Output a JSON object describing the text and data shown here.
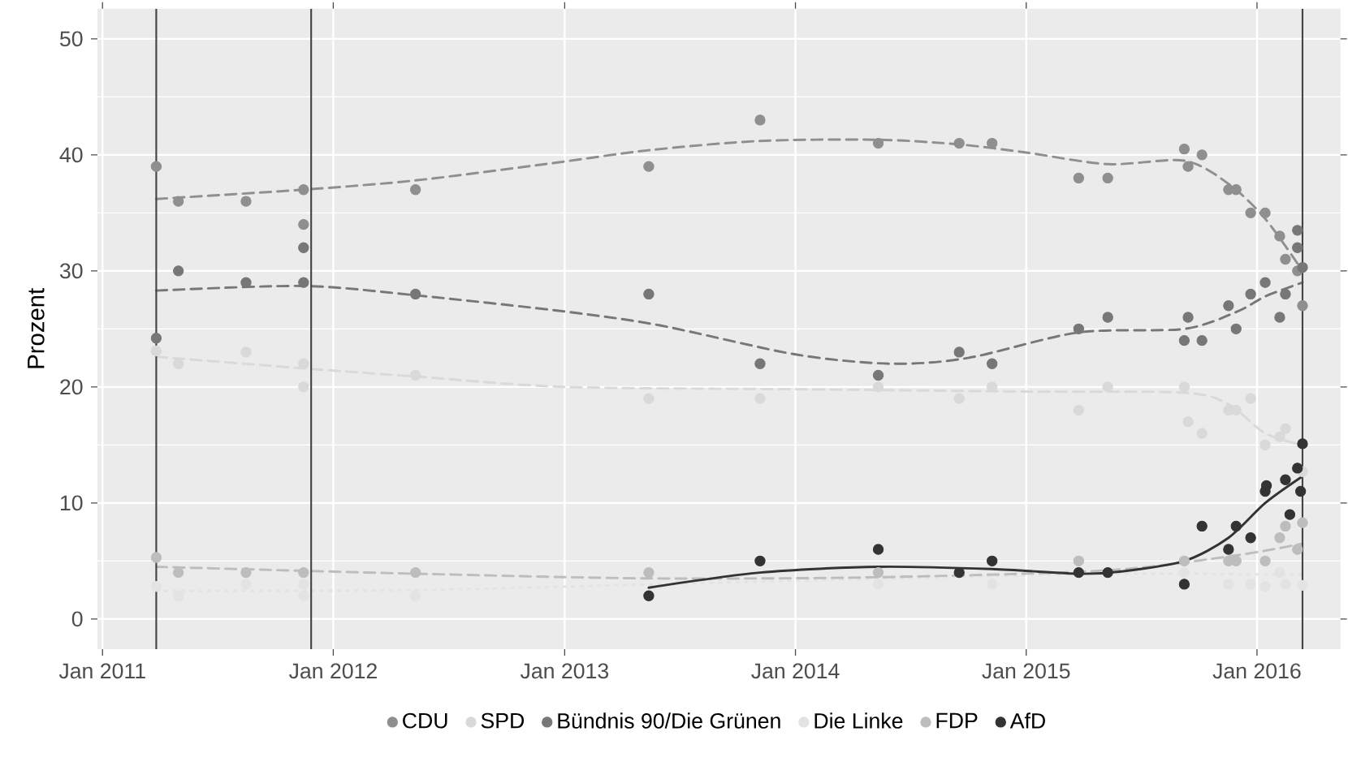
{
  "chart_data": {
    "type": "scatter",
    "ylabel": "Prozent",
    "xlim": [
      "2010-12-24",
      "2016-05-12"
    ],
    "ylim": [
      -2.6,
      52.6
    ],
    "xticks": [
      {
        "value": "2011-01-01",
        "label": "Jan 2011"
      },
      {
        "value": "2012-01-01",
        "label": "Jan 2012"
      },
      {
        "value": "2013-01-01",
        "label": "Jan 2013"
      },
      {
        "value": "2014-01-01",
        "label": "Jan 2014"
      },
      {
        "value": "2015-01-01",
        "label": "Jan 2015"
      },
      {
        "value": "2016-01-01",
        "label": "Jan 2016"
      }
    ],
    "yticks": [
      0,
      10,
      20,
      30,
      40,
      50
    ],
    "grid": true,
    "legend": "bottom",
    "ref_lines": [
      {
        "axis": "x",
        "value": "2011-03-27",
        "color": "#444444"
      },
      {
        "axis": "x",
        "value": "2011-11-27",
        "color": "#444444"
      },
      {
        "axis": "x",
        "value": "2016-03-13",
        "color": "#444444"
      }
    ],
    "series": [
      {
        "name": "CDU",
        "marker": "circle",
        "color": "#8f8f8f",
        "x": [
          "2011-03-27",
          "2011-05-01",
          "2011-08-16",
          "2011-11-15",
          "2011-11-15",
          "2012-05-10",
          "2013-05-14",
          "2013-11-06",
          "2014-05-12",
          "2014-09-17",
          "2014-11-08",
          "2015-03-25",
          "2015-05-10",
          "2015-09-08",
          "2015-09-14",
          "2015-10-06",
          "2015-11-17",
          "2015-11-29",
          "2015-12-22",
          "2016-01-14",
          "2016-02-06",
          "2016-02-15",
          "2016-03-05",
          "2016-03-13"
        ],
        "values": [
          39,
          36,
          36,
          37,
          34,
          37,
          39,
          43,
          41,
          41,
          41,
          38,
          38,
          40.5,
          39,
          40,
          37,
          37,
          35,
          35,
          33,
          31,
          30,
          27
        ]
      },
      {
        "name": "SPD",
        "marker": "circle",
        "color": "#d9d9d9",
        "x": [
          "2011-03-27",
          "2011-05-01",
          "2011-08-16",
          "2011-11-15",
          "2011-11-15",
          "2012-05-10",
          "2013-05-14",
          "2013-11-06",
          "2014-05-12",
          "2014-09-17",
          "2014-11-08",
          "2015-03-25",
          "2015-05-10",
          "2015-09-08",
          "2015-09-14",
          "2015-10-06",
          "2015-11-17",
          "2015-11-29",
          "2015-12-22",
          "2016-01-14",
          "2016-02-06",
          "2016-02-15",
          "2016-03-13"
        ],
        "values": [
          23.1,
          22,
          23,
          22,
          20,
          21,
          19,
          19,
          20,
          19,
          20,
          18,
          20,
          20,
          17,
          16,
          18,
          18,
          19,
          15,
          15.7,
          16.4,
          12.7
        ]
      },
      {
        "name": "Bündnis 90/Die Grünen",
        "marker": "circle",
        "color": "#777777",
        "x": [
          "2011-03-27",
          "2011-05-01",
          "2011-08-16",
          "2011-11-15",
          "2011-11-15",
          "2012-05-10",
          "2013-05-14",
          "2013-11-06",
          "2014-05-12",
          "2014-09-17",
          "2014-11-08",
          "2015-03-25",
          "2015-05-10",
          "2015-09-08",
          "2015-09-14",
          "2015-10-06",
          "2015-11-17",
          "2015-11-29",
          "2015-12-22",
          "2016-01-14",
          "2016-02-06",
          "2016-02-15",
          "2016-03-05",
          "2016-03-05",
          "2016-03-13"
        ],
        "values": [
          24.2,
          30,
          29,
          32,
          29,
          28,
          28,
          22,
          21,
          23,
          22,
          25,
          26,
          24,
          26,
          24,
          27,
          25,
          28,
          29,
          26,
          28,
          33.5,
          32,
          30.3
        ]
      },
      {
        "name": "Die Linke",
        "marker": "circle",
        "color": "#e3e3e3",
        "x": [
          "2011-03-27",
          "2011-05-01",
          "2011-08-16",
          "2011-11-15",
          "2011-11-15",
          "2012-05-10",
          "2014-05-12",
          "2014-11-08",
          "2015-09-08",
          "2015-11-17",
          "2015-12-22",
          "2016-01-14",
          "2016-02-06",
          "2016-02-15",
          "2016-03-13"
        ],
        "values": [
          2.8,
          2,
          3,
          3,
          2,
          2,
          3,
          3,
          4,
          3,
          3,
          2.8,
          4,
          3,
          2.9
        ]
      },
      {
        "name": "FDP",
        "marker": "circle",
        "color": "#bdbdbd",
        "x": [
          "2011-03-27",
          "2011-05-01",
          "2011-08-16",
          "2011-11-15",
          "2012-05-10",
          "2013-05-14",
          "2014-05-12",
          "2014-09-17",
          "2015-03-25",
          "2015-09-08",
          "2015-11-17",
          "2015-11-29",
          "2016-01-14",
          "2016-02-06",
          "2016-02-15",
          "2016-03-05",
          "2016-03-13"
        ],
        "values": [
          5.3,
          4,
          4,
          4,
          4,
          4,
          4,
          null,
          5,
          5,
          5,
          5,
          5,
          7,
          8,
          6,
          8.3
        ]
      },
      {
        "name": "AfD",
        "marker": "circle",
        "color": "#333333",
        "x": [
          "2013-05-14",
          "2013-11-06",
          "2014-05-12",
          "2014-09-17",
          "2014-11-08",
          "2015-03-25",
          "2015-05-10",
          "2015-09-08",
          "2015-10-06",
          "2015-11-17",
          "2015-11-29",
          "2015-12-22",
          "2016-01-14",
          "2016-01-16",
          "2016-02-15",
          "2016-02-22",
          "2016-03-05",
          "2016-03-10",
          "2016-03-13"
        ],
        "values": [
          2,
          5,
          6,
          4,
          5,
          4,
          4,
          3,
          8,
          6,
          8,
          7,
          11,
          11.5,
          12,
          9,
          13,
          11,
          15.1
        ]
      },
      {
        "type": "line",
        "marker": "none",
        "color": "#8f8f8f",
        "line_style": "dashed",
        "x": [
          "2011-03-27",
          "2011-11-15",
          "2012-05-10",
          "2012-12-01",
          "2013-05-14",
          "2013-11-06",
          "2014-05-12",
          "2014-09-17",
          "2015-01-01",
          "2015-05-10",
          "2015-09-08",
          "2015-11-17",
          "2016-01-14",
          "2016-03-13"
        ],
        "values": [
          36.2,
          37,
          37.8,
          39.2,
          40.4,
          41.2,
          41.3,
          40.9,
          40.2,
          39.2,
          39.5,
          37.5,
          34.5,
          30
        ]
      },
      {
        "type": "line",
        "marker": "none",
        "color": "#d9d9d9",
        "line_style": "dashed",
        "x": [
          "2011-03-27",
          "2011-11-15",
          "2012-05-10",
          "2013-01-01",
          "2014-01-01",
          "2015-01-01",
          "2015-09-08",
          "2015-11-17",
          "2016-01-14",
          "2016-03-13"
        ],
        "values": [
          22.6,
          21.6,
          20.9,
          20,
          19.8,
          19.6,
          19.5,
          18.5,
          16,
          15
        ]
      },
      {
        "type": "line",
        "marker": "none",
        "color": "#777777",
        "line_style": "dashed",
        "x": [
          "2011-03-27",
          "2011-11-15",
          "2012-05-10",
          "2013-01-01",
          "2013-06-01",
          "2014-01-01",
          "2014-06-01",
          "2014-10-01",
          "2015-03-25",
          "2015-09-08",
          "2015-12-01",
          "2016-01-14",
          "2016-03-13"
        ],
        "values": [
          28.3,
          28.7,
          27.9,
          26.5,
          25.3,
          22.8,
          22,
          22.5,
          24.7,
          25,
          26.5,
          27.8,
          29
        ]
      },
      {
        "type": "line",
        "marker": "none",
        "color": "#e3e3e3",
        "line_style": "dotted",
        "x": [
          "2011-03-27",
          "2012-05-10",
          "2013-06-01",
          "2014-06-01",
          "2015-06-01",
          "2016-03-13"
        ],
        "values": [
          2.4,
          2.5,
          3,
          3.5,
          3.9,
          3.8
        ]
      },
      {
        "type": "line",
        "marker": "none",
        "color": "#bdbdbd",
        "line_style": "dashed",
        "x": [
          "2011-03-27",
          "2012-05-10",
          "2013-05-14",
          "2014-05-12",
          "2015-05-10",
          "2015-12-01",
          "2016-03-13"
        ],
        "values": [
          4.5,
          3.9,
          3.5,
          3.6,
          4.2,
          5.5,
          6.5
        ]
      },
      {
        "type": "line",
        "marker": "none",
        "color": "#333333",
        "line_style": "solid",
        "x": [
          "2013-05-14",
          "2013-11-06",
          "2014-05-12",
          "2014-11-08",
          "2015-03-25",
          "2015-06-01",
          "2015-09-08",
          "2015-11-17",
          "2016-01-14",
          "2016-03-13"
        ],
        "values": [
          2.7,
          4,
          4.5,
          4.3,
          3.9,
          4.1,
          5,
          7,
          10,
          12.3
        ]
      }
    ]
  }
}
